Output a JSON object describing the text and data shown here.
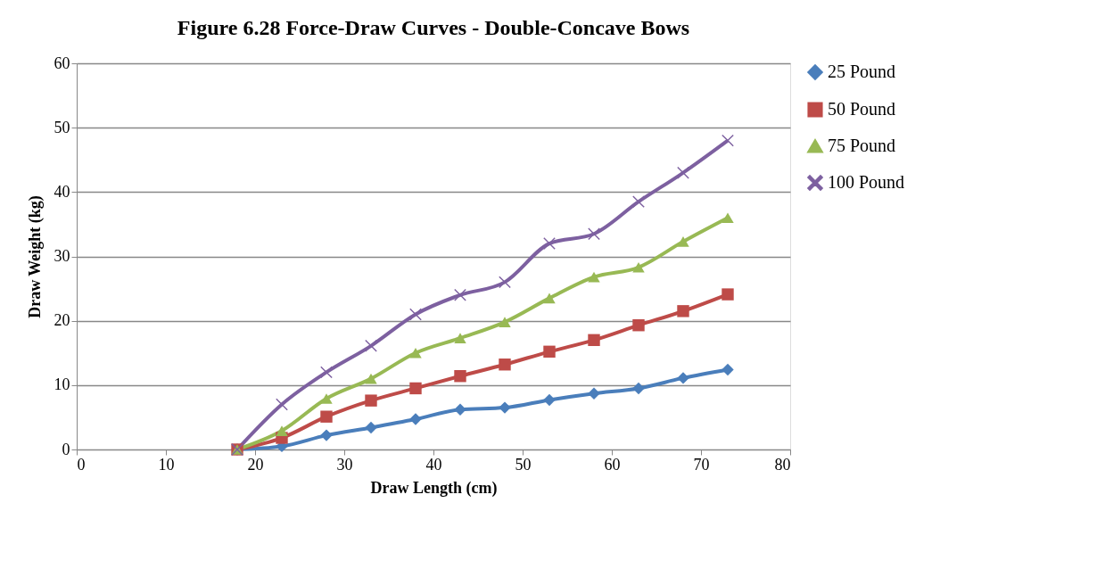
{
  "chart_data": {
    "type": "line",
    "title": "Figure 6.28 Force-Draw Curves - Double-Concave Bows",
    "xlabel": "Draw Length (cm)",
    "ylabel": "Draw Weight (kg)",
    "x": [
      18,
      23,
      28,
      33,
      38,
      43,
      48,
      53,
      58,
      63,
      68,
      73
    ],
    "series": [
      {
        "name": "25 Pound",
        "color": "#4a7ebb",
        "marker": "diamond",
        "values": [
          0,
          0.5,
          2.2,
          3.4,
          4.7,
          6.2,
          6.5,
          7.7,
          8.7,
          9.5,
          11.1,
          12.4
        ]
      },
      {
        "name": "50 Pound",
        "color": "#be4b48",
        "marker": "square",
        "values": [
          0,
          1.8,
          5.1,
          7.6,
          9.5,
          11.4,
          13.2,
          15.2,
          17.0,
          19.3,
          21.5,
          24.1
        ]
      },
      {
        "name": "75 Pound",
        "color": "#98b954",
        "marker": "triangle",
        "values": [
          0,
          2.9,
          7.9,
          11.0,
          15.0,
          17.3,
          19.8,
          23.5,
          26.8,
          28.3,
          32.3,
          36.0
        ]
      },
      {
        "name": "100 Pound",
        "color": "#7d60a0",
        "marker": "cross",
        "values": [
          0,
          7.0,
          12.0,
          16.1,
          21.0,
          24.0,
          26.0,
          32.0,
          33.5,
          38.5,
          43.0,
          48.0
        ]
      }
    ],
    "xlim": [
      0,
      80
    ],
    "xticks": [
      0,
      10,
      20,
      30,
      40,
      50,
      60,
      70,
      80
    ],
    "ylim": [
      0,
      60
    ],
    "yticks": [
      0,
      10,
      20,
      30,
      40,
      50,
      60
    ],
    "grid": "y",
    "legend": "right",
    "line_style": "solid"
  }
}
